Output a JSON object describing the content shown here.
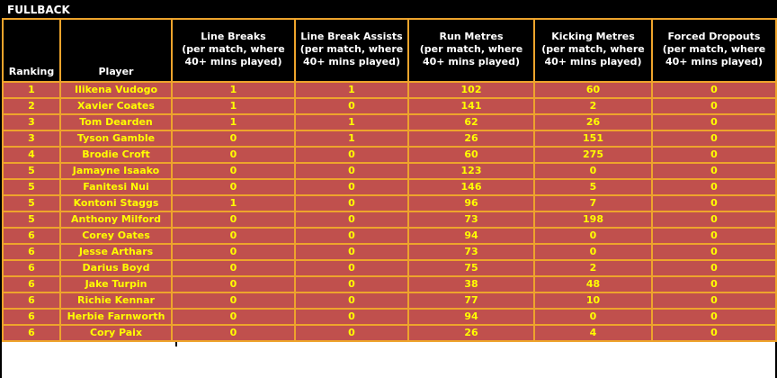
{
  "title": "FULLBACK",
  "colors": {
    "row_bg": "#C0504D",
    "row_text": "#FFFF00",
    "header_bg": "#000000",
    "header_text": "#FFFFFF",
    "grid": "#EEA42C",
    "frame": "#000000"
  },
  "table": {
    "columns": [
      {
        "key": "ranking",
        "header": "Ranking"
      },
      {
        "key": "player",
        "header": "Player"
      },
      {
        "key": "line-breaks",
        "header": "Line Breaks\n(per match, where\n40+ mins played)"
      },
      {
        "key": "line-break-assists",
        "header": "Line Break Assists\n(per match, where\n40+ mins played)"
      },
      {
        "key": "run-metres",
        "header": "Run Metres\n(per match, where\n40+ mins played)"
      },
      {
        "key": "kicking-metres",
        "header": "Kicking Metres\n(per match, where\n40+ mins played)"
      },
      {
        "key": "forced-dropouts",
        "header": "Forced Dropouts\n(per match, where\n40+ mins played)"
      }
    ]
  },
  "chart_data": {
    "type": "table",
    "title": "FULLBACK",
    "columns": [
      "Ranking",
      "Player",
      "Line Breaks (per match, where 40+ mins played)",
      "Line Break Assists (per match, where 40+ mins played)",
      "Run Metres (per match, where 40+ mins played)",
      "Kicking Metres (per match, where 40+ mins played)",
      "Forced Dropouts (per match, where 40+ mins played)"
    ],
    "rows": [
      [
        "1",
        "Ilikena Vudogo",
        "1",
        "1",
        "102",
        "60",
        "0"
      ],
      [
        "2",
        "Xavier Coates",
        "1",
        "0",
        "141",
        "2",
        "0"
      ],
      [
        "3",
        "Tom Dearden",
        "1",
        "1",
        "62",
        "26",
        "0"
      ],
      [
        "3",
        "Tyson Gamble",
        "0",
        "1",
        "26",
        "151",
        "0"
      ],
      [
        "4",
        "Brodie Croft",
        "0",
        "0",
        "60",
        "275",
        "0"
      ],
      [
        "5",
        "Jamayne Isaako",
        "0",
        "0",
        "123",
        "0",
        "0"
      ],
      [
        "5",
        "Fanitesi Nui",
        "0",
        "0",
        "146",
        "5",
        "0"
      ],
      [
        "5",
        "Kontoni Staggs",
        "1",
        "0",
        "96",
        "7",
        "0"
      ],
      [
        "5",
        "Anthony Milford",
        "0",
        "0",
        "73",
        "198",
        "0"
      ],
      [
        "6",
        "Corey Oates",
        "0",
        "0",
        "94",
        "0",
        "0"
      ],
      [
        "6",
        "Jesse Arthars",
        "0",
        "0",
        "73",
        "0",
        "0"
      ],
      [
        "6",
        "Darius Boyd",
        "0",
        "0",
        "75",
        "2",
        "0"
      ],
      [
        "6",
        "Jake Turpin",
        "0",
        "0",
        "38",
        "48",
        "0"
      ],
      [
        "6",
        "Richie Kennar",
        "0",
        "0",
        "77",
        "10",
        "0"
      ],
      [
        "6",
        "Herbie Farnworth",
        "0",
        "0",
        "94",
        "0",
        "0"
      ],
      [
        "6",
        "Cory Paix",
        "0",
        "0",
        "26",
        "4",
        "0"
      ]
    ]
  }
}
